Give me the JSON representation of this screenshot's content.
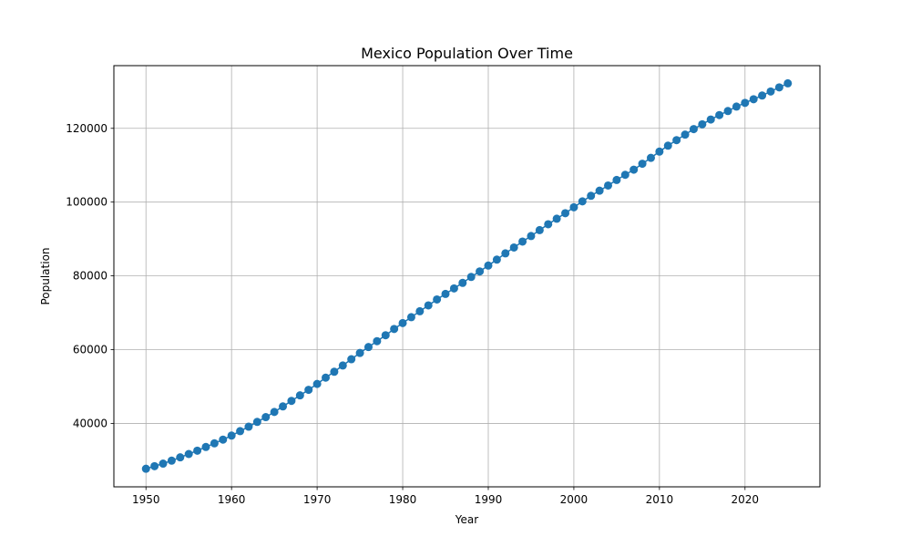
{
  "chart_data": {
    "type": "line",
    "title": "Mexico Population Over Time",
    "xlabel": "Year",
    "ylabel": "Population",
    "xlim": [
      1946.25,
      2028.75
    ],
    "ylim": [
      22800,
      137000
    ],
    "xticks": [
      1950,
      1960,
      1970,
      1980,
      1990,
      2000,
      2010,
      2020
    ],
    "yticks": [
      40000,
      60000,
      80000,
      100000,
      120000
    ],
    "grid": true,
    "marker": "circle",
    "series_color": "#1f77b4",
    "series": [
      {
        "name": "Population",
        "x": [
          1950,
          1951,
          1952,
          1953,
          1954,
          1955,
          1956,
          1957,
          1958,
          1959,
          1960,
          1961,
          1962,
          1963,
          1964,
          1965,
          1966,
          1967,
          1968,
          1969,
          1970,
          1971,
          1972,
          1973,
          1974,
          1975,
          1976,
          1977,
          1978,
          1979,
          1980,
          1981,
          1982,
          1983,
          1984,
          1985,
          1986,
          1987,
          1988,
          1989,
          1990,
          1991,
          1992,
          1993,
          1994,
          1995,
          1996,
          1997,
          1998,
          1999,
          2000,
          2001,
          2002,
          2003,
          2004,
          2005,
          2006,
          2007,
          2008,
          2009,
          2010,
          2011,
          2012,
          2013,
          2014,
          2015,
          2016,
          2017,
          2018,
          2019,
          2020,
          2021,
          2022,
          2023,
          2024,
          2025
        ],
        "values": [
          27700,
          28400,
          29100,
          29900,
          30800,
          31700,
          32600,
          33600,
          34600,
          35600,
          36700,
          37900,
          39100,
          40400,
          41700,
          43100,
          44600,
          46100,
          47600,
          49100,
          50700,
          52400,
          54000,
          55700,
          57400,
          59100,
          60700,
          62300,
          63900,
          65600,
          67200,
          68800,
          70400,
          72000,
          73600,
          75100,
          76600,
          78100,
          79700,
          81200,
          82800,
          84400,
          86100,
          87700,
          89300,
          90800,
          92400,
          94000,
          95500,
          97000,
          98600,
          100200,
          101700,
          103100,
          104500,
          106000,
          107400,
          108800,
          110400,
          112000,
          113700,
          115300,
          116800,
          118300,
          119800,
          121100,
          122400,
          123600,
          124700,
          125900,
          126900,
          127900,
          128900,
          130000,
          131100,
          132200
        ]
      }
    ]
  }
}
